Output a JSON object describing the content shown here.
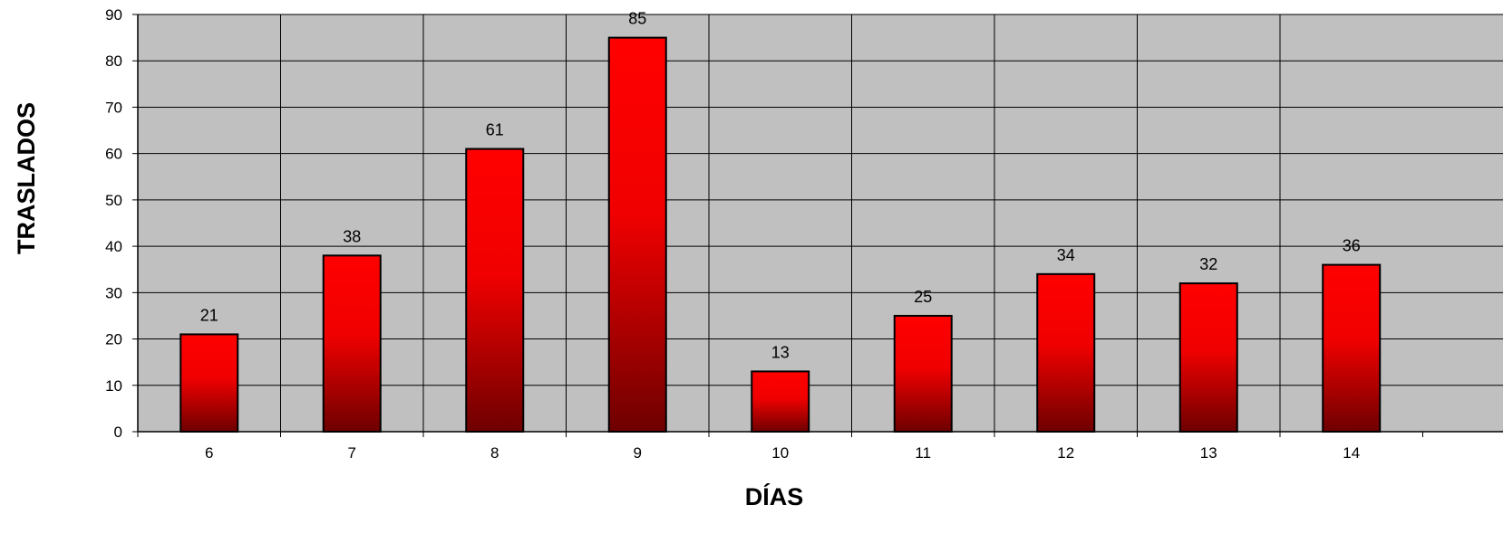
{
  "chart_data": {
    "type": "bar",
    "title": "",
    "xlabel": "DÍAS",
    "ylabel": "TRASLADOS",
    "categories": [
      "6",
      "7",
      "8",
      "9",
      "10",
      "11",
      "12",
      "13",
      "14"
    ],
    "values": [
      21,
      38,
      61,
      85,
      13,
      25,
      34,
      32,
      36
    ],
    "ylim": [
      0,
      90
    ],
    "yticks": [
      0,
      10,
      20,
      30,
      40,
      50,
      60,
      70,
      80,
      90
    ],
    "grid": true,
    "legend": "none",
    "data_labels": true,
    "colors": {
      "plot_background": "#c0c0c0",
      "bar_top": "#ff0000",
      "bar_bottom": "#6e0000",
      "bar_outline": "#000000",
      "grid": "#000000"
    }
  }
}
